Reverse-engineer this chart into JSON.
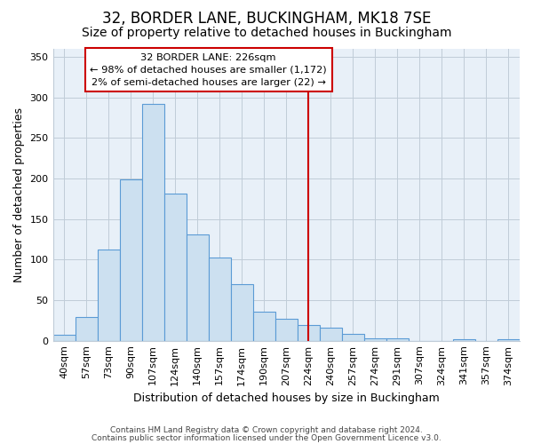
{
  "title": "32, BORDER LANE, BUCKINGHAM, MK18 7SE",
  "subtitle": "Size of property relative to detached houses in Buckingham",
  "xlabel": "Distribution of detached houses by size in Buckingham",
  "ylabel": "Number of detached properties",
  "bar_labels": [
    "40sqm",
    "57sqm",
    "73sqm",
    "90sqm",
    "107sqm",
    "124sqm",
    "140sqm",
    "157sqm",
    "174sqm",
    "190sqm",
    "207sqm",
    "224sqm",
    "240sqm",
    "257sqm",
    "274sqm",
    "291sqm",
    "307sqm",
    "324sqm",
    "341sqm",
    "357sqm",
    "374sqm"
  ],
  "bar_heights": [
    7,
    29,
    112,
    199,
    292,
    181,
    131,
    103,
    70,
    36,
    27,
    19,
    16,
    8,
    3,
    3,
    0,
    0,
    2,
    0,
    2
  ],
  "bar_color": "#cce0f0",
  "bar_edge_color": "#5b9bd5",
  "vline_color": "#cc0000",
  "annotation_title": "32 BORDER LANE: 226sqm",
  "annotation_line1": "← 98% of detached houses are smaller (1,172)",
  "annotation_line2": "2% of semi-detached houses are larger (22) →",
  "annotation_box_color": "#ffffff",
  "annotation_box_edge": "#cc0000",
  "ylim": [
    0,
    360
  ],
  "yticks": [
    0,
    50,
    100,
    150,
    200,
    250,
    300,
    350
  ],
  "footnote1": "Contains HM Land Registry data © Crown copyright and database right 2024.",
  "footnote2": "Contains public sector information licensed under the Open Government Licence v3.0.",
  "background_color": "#ffffff",
  "plot_bg_color": "#e8f0f8",
  "grid_color": "#c0ccd8",
  "title_fontsize": 12,
  "subtitle_fontsize": 10,
  "axis_label_fontsize": 9,
  "tick_fontsize": 8
}
